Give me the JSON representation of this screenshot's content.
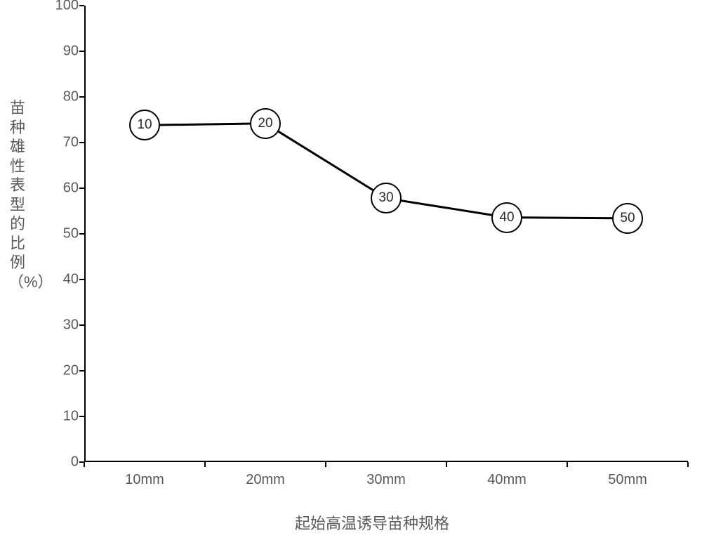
{
  "chart": {
    "type": "line",
    "background_color": "#ffffff",
    "border_color": "#000000",
    "y_axis": {
      "title": "苗种雄性表型的比例（%）",
      "min": 0,
      "max": 100,
      "tick_step": 10,
      "ticks": [
        0,
        10,
        20,
        30,
        40,
        50,
        60,
        70,
        80,
        90,
        100
      ],
      "label_fontsize": 20,
      "label_color": "#595959",
      "title_fontsize": 22
    },
    "x_axis": {
      "title": "起始高温诱导苗种规格",
      "categories": [
        "10mm",
        "20mm",
        "30mm",
        "40mm",
        "50mm"
      ],
      "label_fontsize": 20,
      "label_color": "#595959",
      "title_fontsize": 22
    },
    "series": {
      "marker_labels": [
        "10",
        "20",
        "30",
        "40",
        "50"
      ],
      "values": [
        73.8,
        74.2,
        57.8,
        53.6,
        53.4
      ],
      "line_color": "#000000",
      "line_width": 3,
      "marker_border_color": "#000000",
      "marker_fill_color": "#ffffff",
      "marker_radius": 22,
      "marker_text_color": "#2a2a2a"
    }
  }
}
